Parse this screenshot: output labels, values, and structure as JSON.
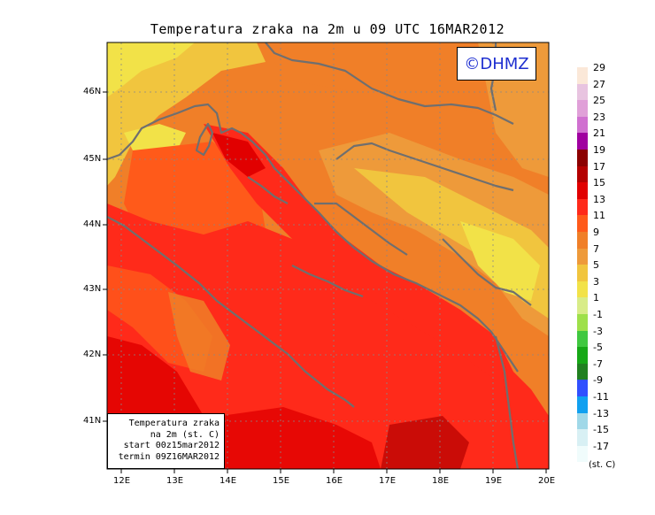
{
  "title": "Temperatura zraka na 2m u 09 UTC 16MAR2012",
  "copyright": "©DHMZ",
  "info_box": {
    "line1": "Temperatura zraka",
    "line2": "na 2m (st. C)",
    "line3": "start 00z15mar2012",
    "line4": "termin 09Z16MAR2012"
  },
  "axes": {
    "lon_labels": [
      "12E",
      "13E",
      "14E",
      "15E",
      "16E",
      "17E",
      "18E",
      "19E",
      "20E"
    ],
    "lat_labels": [
      "46N",
      "45N",
      "44N",
      "43N",
      "42N",
      "41N"
    ]
  },
  "legend": {
    "unit": "(st. C)",
    "labels": [
      "29",
      "27",
      "25",
      "23",
      "21",
      "19",
      "17",
      "15",
      "13",
      "11",
      "9",
      "7",
      "5",
      "3",
      "1",
      "-1",
      "-3",
      "-5",
      "-7",
      "-9",
      "-11",
      "-13",
      "-15",
      "-17"
    ],
    "colors": [
      "#fbe8d8",
      "#e8c4e0",
      "#e0a0d8",
      "#d070d0",
      "#a000a0",
      "#8c0000",
      "#b40000",
      "#e10000",
      "#ff2a1a",
      "#ff5a1a",
      "#f07f28",
      "#ee9a3a",
      "#f1c53e",
      "#f2e248",
      "#d8ec88",
      "#9ee04a",
      "#40c840",
      "#16a816",
      "#208020",
      "#3050ff",
      "#10a0f0",
      "#a0d8e8",
      "#d8f0f4",
      "#f0fcfc"
    ]
  }
}
